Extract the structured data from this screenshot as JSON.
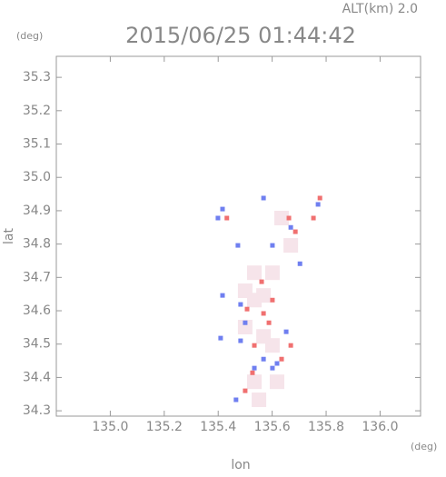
{
  "chart_data": {
    "type": "scatter",
    "title": "2015/06/25 01:44:42",
    "top_label": "ALT(km) 2.0",
    "y_unit": "(deg)",
    "x_unit": "(deg)",
    "xlabel": "lon",
    "ylabel": "lat",
    "xlim": [
      134.8,
      136.15
    ],
    "ylim": [
      34.284,
      35.363
    ],
    "xticks": [
      {
        "value": 135.0,
        "label": "135.0"
      },
      135.2,
      135.4,
      135.6,
      135.8,
      {
        "value": 136.0,
        "label": "136.0"
      }
    ],
    "yticks": [
      34.3,
      34.4,
      34.5,
      34.6,
      34.7,
      34.8,
      34.9,
      {
        "value": 35.0,
        "label": "35.0"
      },
      35.1,
      35.2,
      35.3
    ],
    "series": [
      {
        "color": "#f6e4ea",
        "x": [
          135.534,
          135.5,
          135.568,
          135.601,
          135.534,
          135.5,
          135.568,
          135.601,
          135.534,
          135.618,
          135.551,
          135.669,
          135.635
        ],
        "values": [
          34.632,
          34.66,
          34.646,
          34.714,
          34.714,
          34.551,
          34.523,
          34.496,
          34.387,
          34.387,
          34.333,
          34.796,
          34.878
        ]
      },
      {
        "color": "#6f7ff0",
        "x": [
          135.416,
          135.399,
          135.568,
          135.473,
          135.601,
          135.416,
          135.483,
          135.409,
          135.483,
          135.534,
          135.601,
          135.652,
          135.5,
          135.466,
          135.703,
          135.77,
          135.669,
          135.568,
          135.618
        ],
        "values": [
          34.905,
          34.878,
          34.938,
          34.796,
          34.796,
          34.646,
          34.619,
          34.518,
          34.51,
          34.428,
          34.428,
          34.537,
          34.564,
          34.333,
          34.741,
          34.919,
          34.85,
          34.455,
          34.442
        ]
      },
      {
        "color": "#f07070",
        "x": [
          135.432,
          135.662,
          135.753,
          135.507,
          135.568,
          135.601,
          135.534,
          135.669,
          135.527,
          135.5,
          135.635,
          135.686,
          135.777,
          135.561,
          135.588
        ],
        "values": [
          34.878,
          34.878,
          34.878,
          34.605,
          34.592,
          34.632,
          34.496,
          34.496,
          34.414,
          34.36,
          34.455,
          34.837,
          34.938,
          34.687,
          34.564
        ]
      }
    ]
  }
}
